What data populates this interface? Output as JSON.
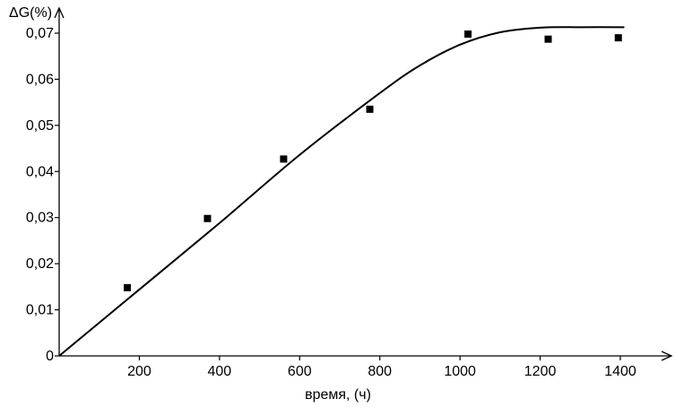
{
  "chart_data": {
    "type": "scatter",
    "title": "",
    "ylabel": "ΔG(%)",
    "xlabel": "время, (ч)",
    "xlim": [
      0,
      1450
    ],
    "ylim": [
      0,
      0.07
    ],
    "grid": false,
    "x_ticks": [
      200,
      400,
      600,
      800,
      1000,
      1200,
      1400
    ],
    "x_tick_labels": [
      "200",
      "400",
      "600",
      "800",
      "1000",
      "1200",
      "1400"
    ],
    "y_ticks": [
      0,
      0.01,
      0.02,
      0.03,
      0.04,
      0.05,
      0.06,
      0.07
    ],
    "y_tick_labels": [
      "0",
      "0,01",
      "0,02",
      "0,03",
      "0,04",
      "0,05",
      "0,06",
      "0,07"
    ],
    "series": [
      {
        "kind": "points",
        "x": [
          170,
          370,
          560,
          775,
          1020,
          1220,
          1395
        ],
        "y": [
          0.0148,
          0.0298,
          0.0427,
          0.0535,
          0.0698,
          0.0687,
          0.069
        ]
      },
      {
        "kind": "fit-line",
        "x": [
          0,
          200,
          400,
          600,
          800,
          900,
          1000,
          1100,
          1200,
          1300,
          1410
        ],
        "y": [
          0,
          0.0144,
          0.0288,
          0.0436,
          0.057,
          0.063,
          0.0675,
          0.0702,
          0.0712,
          0.0713,
          0.0713
        ]
      }
    ],
    "colors": {
      "axes": "#000000",
      "points": "#000000",
      "line": "#000000"
    }
  }
}
